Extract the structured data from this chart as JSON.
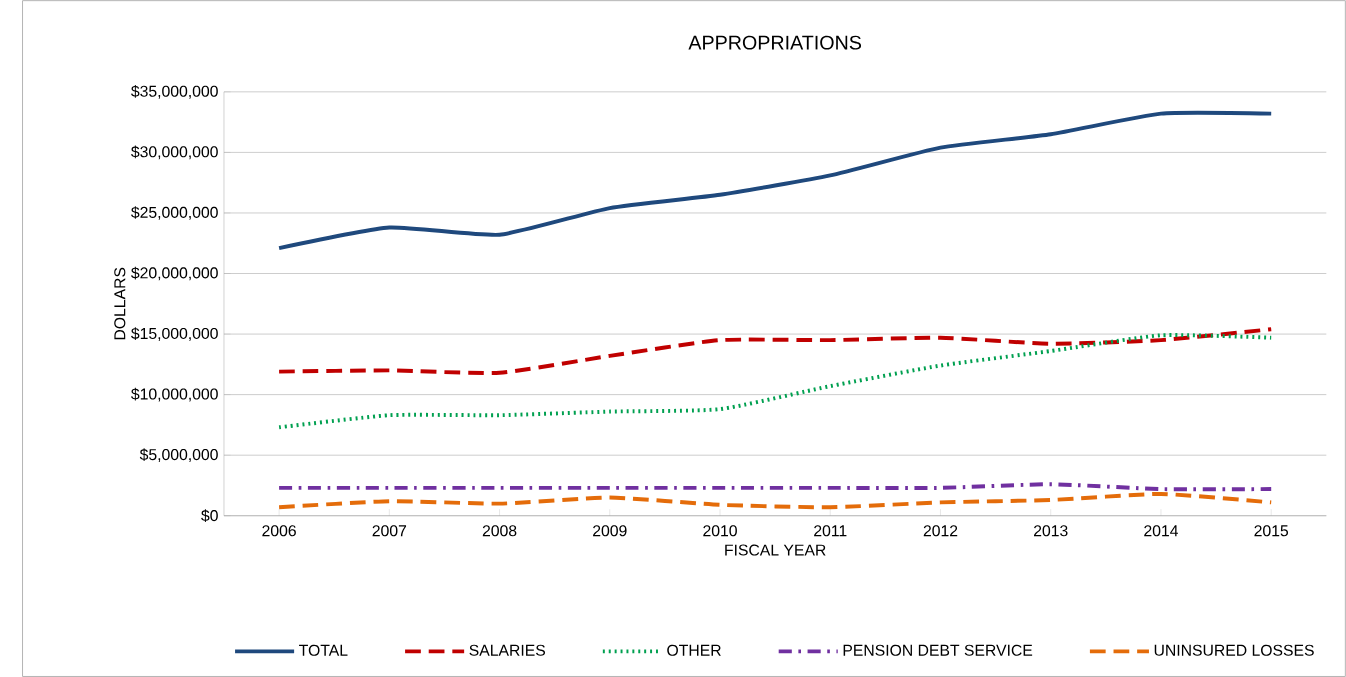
{
  "chart_data": {
    "type": "line",
    "title": "APPROPRIATIONS",
    "xlabel": "FISCAL YEAR",
    "ylabel": "DOLLARS",
    "categories": [
      "2006",
      "2007",
      "2008",
      "2009",
      "2010",
      "2011",
      "2012",
      "2013",
      "2014",
      "2015"
    ],
    "series": [
      {
        "name": "TOTAL",
        "color": "#1f497d",
        "line_style": "solid",
        "values": [
          22100000,
          23800000,
          23200000,
          25400000,
          26500000,
          28100000,
          30400000,
          31500000,
          33200000,
          33200000
        ]
      },
      {
        "name": "SALARIES",
        "color": "#c00000",
        "line_style": "dashed",
        "values": [
          11900000,
          12000000,
          11800000,
          13200000,
          14500000,
          14500000,
          14700000,
          14200000,
          14500000,
          15400000
        ]
      },
      {
        "name": "OTHER",
        "color": "#00a050",
        "line_style": "dotted",
        "values": [
          7300000,
          8300000,
          8300000,
          8600000,
          8800000,
          10700000,
          12400000,
          13600000,
          14900000,
          14700000
        ]
      },
      {
        "name": "PENSION DEBT SERVICE",
        "color": "#7030a0",
        "line_style": "dashdot",
        "values": [
          2300000,
          2300000,
          2300000,
          2300000,
          2300000,
          2300000,
          2300000,
          2600000,
          2200000,
          2200000
        ]
      },
      {
        "name": "UNINSURED LOSSES",
        "color": "#e46c0a",
        "line_style": "dashed",
        "values": [
          700000,
          1200000,
          1000000,
          1500000,
          900000,
          700000,
          1100000,
          1300000,
          1800000,
          1100000
        ]
      }
    ],
    "ylim": [
      0,
      35000000
    ],
    "yticks": [
      {
        "value": 0,
        "label": "$0"
      },
      {
        "value": 5000000,
        "label": "$5,000,000"
      },
      {
        "value": 10000000,
        "label": "$10,000,000"
      },
      {
        "value": 15000000,
        "label": "$15,000,000"
      },
      {
        "value": 20000000,
        "label": "$20,000,000"
      },
      {
        "value": 25000000,
        "label": "$25,000,000"
      },
      {
        "value": 30000000,
        "label": "$30,000,000"
      },
      {
        "value": 35000000,
        "label": "$35,000,000"
      }
    ],
    "grid": "y",
    "legend": "bottom",
    "marker": "none"
  }
}
